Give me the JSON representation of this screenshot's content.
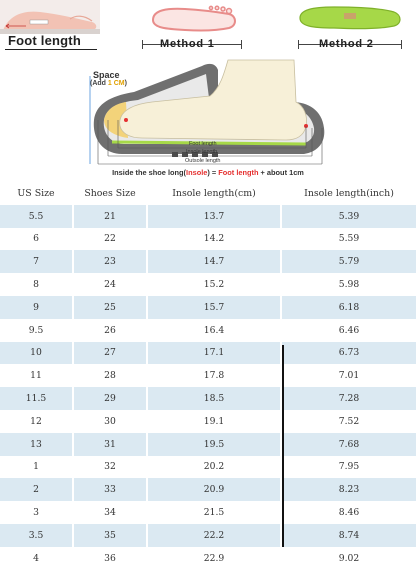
{
  "header": {
    "foot_length_label": "Foot length",
    "method1_label": "Method 1",
    "method2_label": "Method 2",
    "space_label": "Space",
    "space_add_prefix": "(Add ",
    "space_add_value": "1 CM",
    "space_add_suffix": ")",
    "dim_foot_length": "Foot length",
    "dim_insole_length": "Insole length",
    "dim_outsole_length": "Outsole length",
    "caption_part1": "Inside the shoe long(",
    "caption_insole": "Insole",
    "caption_part2": ") = ",
    "caption_foot_length": "Foot length",
    "caption_part3": " + about 1cm"
  },
  "colors": {
    "row_blue": "#dbe9f2",
    "accent_red": "#e53030",
    "accent_yellow": "#e0a000",
    "insole_green": "#a6d848"
  },
  "table": {
    "headers": [
      "US Size",
      "Shoes Size",
      "Insole length(cm)",
      "Insole length(inch)"
    ],
    "rows": [
      [
        "5.5",
        "21",
        "13.7",
        "5.39"
      ],
      [
        "6",
        "22",
        "14.2",
        "5.59"
      ],
      [
        "7",
        "23",
        "14.7",
        "5.79"
      ],
      [
        "8",
        "24",
        "15.2",
        "5.98"
      ],
      [
        "9",
        "25",
        "15.7",
        "6.18"
      ],
      [
        "9.5",
        "26",
        "16.4",
        "6.46"
      ],
      [
        "10",
        "27",
        "17.1",
        "6.73"
      ],
      [
        "11",
        "28",
        "17.8",
        "7.01"
      ],
      [
        "11.5",
        "29",
        "18.5",
        "7.28"
      ],
      [
        "12",
        "30",
        "19.1",
        "7.52"
      ],
      [
        "13",
        "31",
        "19.5",
        "7.68"
      ],
      [
        "1",
        "32",
        "20.2",
        "7.95"
      ],
      [
        "2",
        "33",
        "20.9",
        "8.23"
      ],
      [
        "3",
        "34",
        "21.5",
        "8.46"
      ],
      [
        "3.5",
        "35",
        "22.2",
        "8.74"
      ],
      [
        "4",
        "36",
        "22.9",
        "9.02"
      ]
    ]
  }
}
